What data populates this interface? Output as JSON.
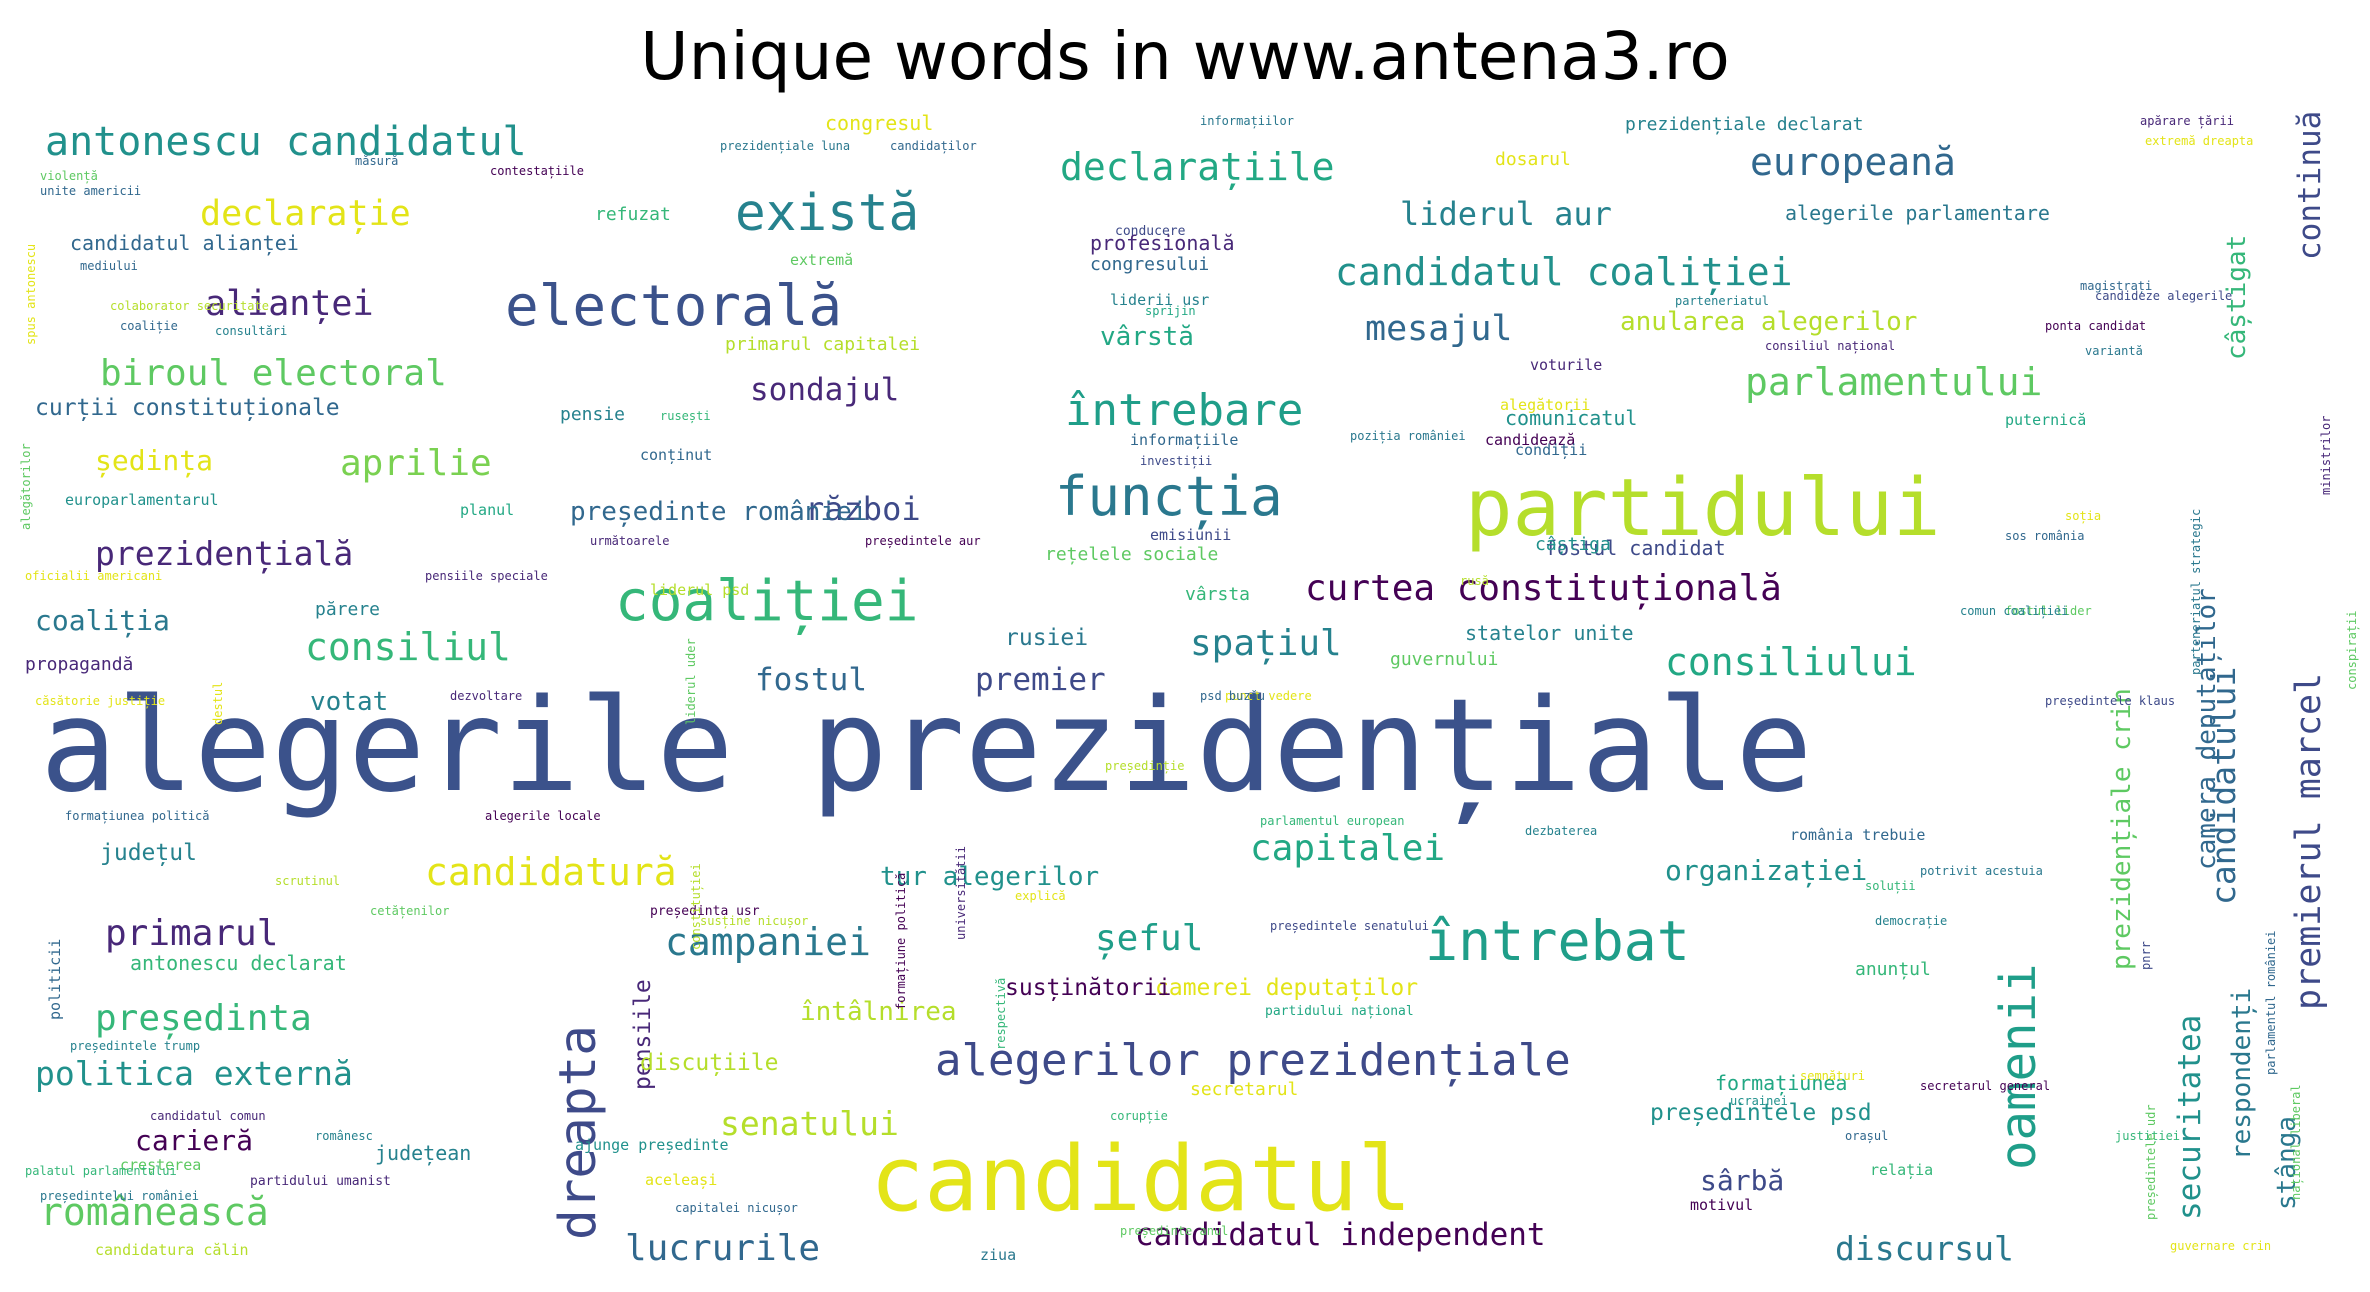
{
  "chart_data": {
    "type": "wordcloud",
    "title": "Unique words in www.antena3.ro",
    "words": [
      {
        "text": "alegerile prezidențiale",
        "weight": 100,
        "color": "#3b528b"
      },
      {
        "text": "candidatul",
        "weight": 70,
        "color": "#e3e418"
      },
      {
        "text": "partidului",
        "weight": 62,
        "color": "#b5de2b"
      },
      {
        "text": "electorală",
        "weight": 44,
        "color": "#3b528b"
      },
      {
        "text": "coaliției",
        "weight": 44,
        "color": "#35b779"
      },
      {
        "text": "întrebat",
        "weight": 43,
        "color": "#1f9e89"
      },
      {
        "text": "funcția",
        "weight": 42,
        "color": "#2a788e"
      },
      {
        "text": "există",
        "weight": 40,
        "color": "#26828e"
      },
      {
        "text": "dreapta",
        "weight": 40,
        "color": "#3e4a89"
      },
      {
        "text": "oamenii",
        "weight": 38,
        "color": "#1f9e89"
      },
      {
        "text": "alegerilor prezidențiale",
        "weight": 34,
        "color": "#3e4a89"
      },
      {
        "text": "întrebare",
        "weight": 34,
        "color": "#1f9e89"
      },
      {
        "text": "antonescu candidatul",
        "weight": 31,
        "color": "#21918c"
      },
      {
        "text": "candidatul coaliției",
        "weight": 30,
        "color": "#21918c"
      },
      {
        "text": "europeană",
        "weight": 30,
        "color": "#31688e"
      },
      {
        "text": "declarațiile",
        "weight": 30,
        "color": "#22a884"
      },
      {
        "text": "românească",
        "weight": 30,
        "color": "#5ec962"
      },
      {
        "text": "candidatură",
        "weight": 30,
        "color": "#e3e418"
      },
      {
        "text": "campaniei",
        "weight": 30,
        "color": "#2a788e"
      },
      {
        "text": "parlamentului",
        "weight": 30,
        "color": "#5ec962"
      },
      {
        "text": "consiliul",
        "weight": 30,
        "color": "#35b779"
      },
      {
        "text": "consiliului",
        "weight": 30,
        "color": "#22a884"
      },
      {
        "text": "curtea constituțională",
        "weight": 28,
        "color": "#440154"
      },
      {
        "text": "președinta",
        "weight": 28,
        "color": "#35b779"
      },
      {
        "text": "biroul electoral",
        "weight": 28,
        "color": "#5ec962"
      },
      {
        "text": "primarul",
        "weight": 28,
        "color": "#482878"
      },
      {
        "text": "lucrurile",
        "weight": 28,
        "color": "#31688e"
      },
      {
        "text": "capitalei",
        "weight": 28,
        "color": "#22a884"
      },
      {
        "text": "aprilie",
        "weight": 28,
        "color": "#7ad151"
      },
      {
        "text": "spațiul",
        "weight": 28,
        "color": "#26828e"
      },
      {
        "text": "șeful",
        "weight": 28,
        "color": "#1f9e89"
      },
      {
        "text": "alianței",
        "weight": 27,
        "color": "#482878"
      },
      {
        "text": "mesajul",
        "weight": 27,
        "color": "#31688e"
      },
      {
        "text": "declarație",
        "weight": 27,
        "color": "#e3e418"
      },
      {
        "text": "premierul marcel",
        "weight": 27,
        "color": "#3e4a89"
      },
      {
        "text": "candidatului",
        "weight": 26,
        "color": "#31688e"
      },
      {
        "text": "senatului",
        "weight": 26,
        "color": "#b5de2b"
      },
      {
        "text": "discursul",
        "weight": 26,
        "color": "#2a788e"
      },
      {
        "text": "prezidențială",
        "weight": 26,
        "color": "#482878"
      },
      {
        "text": "politica externă",
        "weight": 26,
        "color": "#21918c"
      },
      {
        "text": "liderul aur",
        "weight": 25,
        "color": "#26828e"
      },
      {
        "text": "război",
        "weight": 25,
        "color": "#3e4a89"
      },
      {
        "text": "sondajul",
        "weight": 24,
        "color": "#482878"
      },
      {
        "text": "premier",
        "weight": 24,
        "color": "#3e4a89"
      },
      {
        "text": "fostul",
        "weight": 24,
        "color": "#31688e"
      },
      {
        "text": "candidatul independent",
        "weight": 24,
        "color": "#440154"
      },
      {
        "text": "securitatea",
        "weight": 24,
        "color": "#21918c"
      },
      {
        "text": "continuă",
        "weight": 24,
        "color": "#3e4a89"
      },
      {
        "text": "coaliția",
        "weight": 22,
        "color": "#2a788e"
      },
      {
        "text": "ședința",
        "weight": 22,
        "color": "#e3e418"
      },
      {
        "text": "organizației",
        "weight": 22,
        "color": "#21918c"
      },
      {
        "text": "sârbă",
        "weight": 22,
        "color": "#3e4a89"
      },
      {
        "text": "carieră",
        "weight": 22,
        "color": "#440154"
      },
      {
        "text": "vârstă",
        "weight": 20,
        "color": "#22a884"
      },
      {
        "text": "votat",
        "weight": 20,
        "color": "#26828e"
      },
      {
        "text": "anularea alegerilor",
        "weight": 20,
        "color": "#b5de2b"
      },
      {
        "text": "președinte româniei",
        "weight": 20,
        "color": "#31688e"
      },
      {
        "text": "tur alegerilor",
        "weight": 20,
        "color": "#21918c"
      },
      {
        "text": "întâlnirea",
        "weight": 20,
        "color": "#b5de2b"
      },
      {
        "text": "câștigat",
        "weight": 20,
        "color": "#35b779"
      },
      {
        "text": "camera deputaților",
        "weight": 20,
        "color": "#31688e"
      },
      {
        "text": "prezidențiale crin",
        "weight": 20,
        "color": "#5ec962"
      },
      {
        "text": "respondenți",
        "weight": 20,
        "color": "#2a788e"
      },
      {
        "text": "stânga",
        "weight": 20,
        "color": "#2a788e"
      },
      {
        "text": "pensiile",
        "weight": 18,
        "color": "#482878"
      },
      {
        "text": "județul",
        "weight": 18,
        "color": "#26828e"
      },
      {
        "text": "curții constituționale",
        "weight": 18,
        "color": "#31688e"
      },
      {
        "text": "camerei deputaților",
        "weight": 18,
        "color": "#e3e418"
      },
      {
        "text": "susținătorii",
        "weight": 18,
        "color": "#440154"
      },
      {
        "text": "președintele psd",
        "weight": 18,
        "color": "#21918c"
      },
      {
        "text": "discuțiile",
        "weight": 18,
        "color": "#b5de2b"
      },
      {
        "text": "rusiei",
        "weight": 18,
        "color": "#2a788e"
      },
      {
        "text": "profesională",
        "weight": 16,
        "color": "#482878"
      },
      {
        "text": "antonescu declarat",
        "weight": 16,
        "color": "#35b779"
      },
      {
        "text": "județean",
        "weight": 16,
        "color": "#26828e"
      },
      {
        "text": "alegerile parlamentare",
        "weight": 16,
        "color": "#2a788e"
      },
      {
        "text": "statelor unite",
        "weight": 16,
        "color": "#26828e"
      },
      {
        "text": "formațiunea",
        "weight": 16,
        "color": "#22a884"
      },
      {
        "text": "fostul candidat",
        "weight": 16,
        "color": "#3e4a89"
      },
      {
        "text": "comunicatul",
        "weight": 16,
        "color": "#21918c"
      },
      {
        "text": "candidatul alianței",
        "weight": 16,
        "color": "#31688e"
      },
      {
        "text": "congresul",
        "weight": 16,
        "color": "#e3e418"
      },
      {
        "text": "prezidențiale declarat",
        "weight": 14,
        "color": "#26828e"
      },
      {
        "text": "congresului",
        "weight": 14,
        "color": "#31688e"
      },
      {
        "text": "anunțul",
        "weight": 14,
        "color": "#35b779"
      },
      {
        "text": "primarul capitalei",
        "weight": 14,
        "color": "#b5de2b"
      },
      {
        "text": "rețelele sociale",
        "weight": 14,
        "color": "#5ec962"
      },
      {
        "text": "secretarul",
        "weight": 14,
        "color": "#e3e418"
      },
      {
        "text": "dosarul",
        "weight": 14,
        "color": "#e3e418"
      },
      {
        "text": "refuzat",
        "weight": 14,
        "color": "#35b779"
      },
      {
        "text": "propagandă",
        "weight": 14,
        "color": "#482878"
      },
      {
        "text": "părere",
        "weight": 14,
        "color": "#26828e"
      },
      {
        "text": "guvernului",
        "weight": 14,
        "color": "#5ec962"
      },
      {
        "text": "câștiga",
        "weight": 14,
        "color": "#21918c"
      },
      {
        "text": "pensie",
        "weight": 14,
        "color": "#26828e"
      },
      {
        "text": "conținut",
        "weight": 12,
        "color": "#31688e"
      },
      {
        "text": "europarlamentarul",
        "weight": 12,
        "color": "#21918c"
      },
      {
        "text": "emisiunii",
        "weight": 12,
        "color": "#3e4a89"
      },
      {
        "text": "vârsta",
        "weight": 14,
        "color": "#35b779"
      },
      {
        "text": "voturile",
        "weight": 12,
        "color": "#482878"
      },
      {
        "text": "liderul psd",
        "weight": 12,
        "color": "#b5de2b"
      },
      {
        "text": "extremă",
        "weight": 12,
        "color": "#5ec962"
      },
      {
        "text": "candidează",
        "weight": 12,
        "color": "#440154"
      },
      {
        "text": "alegătorii",
        "weight": 12,
        "color": "#e3e418"
      },
      {
        "text": "puternică",
        "weight": 12,
        "color": "#22a884"
      },
      {
        "text": "condiții",
        "weight": 12,
        "color": "#31688e"
      },
      {
        "text": "informațiile",
        "weight": 12,
        "color": "#31688e"
      },
      {
        "text": "liderii usr",
        "weight": 12,
        "color": "#26828e"
      },
      {
        "text": "planul",
        "weight": 12,
        "color": "#22a884"
      },
      {
        "text": "românia trebuie",
        "weight": 12,
        "color": "#31688e"
      },
      {
        "text": "motivul",
        "weight": 12,
        "color": "#440154"
      },
      {
        "text": "relația",
        "weight": 12,
        "color": "#35b779"
      },
      {
        "text": "creșterea",
        "weight": 12,
        "color": "#5ec962"
      },
      {
        "text": "ajunge președinte",
        "weight": 12,
        "color": "#21918c"
      },
      {
        "text": "aceleași",
        "weight": 12,
        "color": "#e3e418"
      },
      {
        "text": "candidatura călin",
        "weight": 12,
        "color": "#b5de2b"
      },
      {
        "text": "ziua",
        "weight": 12,
        "color": "#2a788e"
      },
      {
        "text": "politicii",
        "weight": 12,
        "color": "#31688e"
      },
      {
        "text": "partidului umanist",
        "weight": 10,
        "color": "#482878"
      },
      {
        "text": "partidului național",
        "weight": 10,
        "color": "#22a884"
      },
      {
        "text": "președinta usr",
        "weight": 10,
        "color": "#440154"
      },
      {
        "text": "ucrainei",
        "weight": 8,
        "color": "#21918c"
      },
      {
        "text": "orașul",
        "weight": 8,
        "color": "#31688e"
      },
      {
        "text": "magistrați",
        "weight": 7,
        "color": "#31688e"
      },
      {
        "text": "ponta candidat",
        "weight": 7,
        "color": "#440154"
      },
      {
        "text": "apărare țării",
        "weight": 7,
        "color": "#482878"
      },
      {
        "text": "variantă",
        "weight": 7,
        "color": "#2a788e"
      },
      {
        "text": "cetățenilor",
        "weight": 7,
        "color": "#5ec962"
      },
      {
        "text": "scrutinul",
        "weight": 7,
        "color": "#b5de2b"
      },
      {
        "text": "dezvoltare",
        "weight": 7,
        "color": "#482878"
      },
      {
        "text": "explică",
        "weight": 7,
        "color": "#e3e418"
      },
      {
        "text": "democrație",
        "weight": 7,
        "color": "#26828e"
      },
      {
        "text": "soluții",
        "weight": 7,
        "color": "#35b779"
      },
      {
        "text": "mediului",
        "weight": 7,
        "color": "#31688e"
      },
      {
        "text": "sprijin",
        "weight": 7,
        "color": "#22a884"
      },
      {
        "text": "soția",
        "weight": 8,
        "color": "#e3e418"
      },
      {
        "text": "conducere",
        "weight": 10,
        "color": "#3e4a89"
      },
      {
        "text": "dezbaterea",
        "weight": 7,
        "color": "#26828e"
      },
      {
        "text": "președinție",
        "weight": 8,
        "color": "#b5de2b"
      },
      {
        "text": "pnrr",
        "weight": 8,
        "color": "#3e4a89"
      },
      {
        "text": "justiției",
        "weight": 8,
        "color": "#35b779"
      },
      {
        "text": "violență",
        "weight": 6,
        "color": "#5ec962"
      },
      {
        "text": "unite americii",
        "weight": 7,
        "color": "#31688e"
      },
      {
        "text": "măsură",
        "weight": 6,
        "color": "#31688e"
      },
      {
        "text": "contestațiile",
        "weight": 6,
        "color": "#440154"
      },
      {
        "text": "prezidențiale luna",
        "weight": 6,
        "color": "#2a788e"
      },
      {
        "text": "candidaților",
        "weight": 6,
        "color": "#31688e"
      },
      {
        "text": "parteneriatul",
        "weight": 6,
        "color": "#26828e"
      },
      {
        "text": "consiliul național",
        "weight": 6,
        "color": "#482878"
      },
      {
        "text": "candideze alegerile",
        "weight": 6,
        "color": "#3e4a89"
      },
      {
        "text": "colaborator securitate",
        "weight": 6,
        "color": "#b5de2b"
      },
      {
        "text": "coaliție",
        "weight": 6,
        "color": "#31688e"
      },
      {
        "text": "consultări",
        "weight": 6,
        "color": "#26828e"
      },
      {
        "text": "rusești",
        "weight": 6,
        "color": "#35b779"
      },
      {
        "text": "poziția româniei",
        "weight": 6,
        "color": "#2a788e"
      },
      {
        "text": "investiții",
        "weight": 6,
        "color": "#3e4a89"
      },
      {
        "text": "următoarele",
        "weight": 6,
        "color": "#482878"
      },
      {
        "text": "președintele aur",
        "weight": 6,
        "color": "#440154"
      },
      {
        "text": "oficialii americani",
        "weight": 6,
        "color": "#e3e418"
      },
      {
        "text": "pensiile speciale",
        "weight": 7,
        "color": "#482878"
      },
      {
        "text": "extremă dreapta",
        "weight": 7,
        "color": "#e3e418"
      },
      {
        "text": "sos românia",
        "weight": 6,
        "color": "#31688e"
      },
      {
        "text": "fostul lider",
        "weight": 6,
        "color": "#5ec962"
      },
      {
        "text": "comun coaliției",
        "weight": 6,
        "color": "#26828e"
      },
      {
        "text": "rusă",
        "weight": 6,
        "color": "#b5de2b"
      },
      {
        "text": "căsătorie justiție",
        "weight": 6,
        "color": "#e3e418"
      },
      {
        "text": "punct vedere",
        "weight": 6,
        "color": "#e3e418"
      },
      {
        "text": "psd buzău",
        "weight": 7,
        "color": "#31688e"
      },
      {
        "text": "președintele klaus",
        "weight": 7,
        "color": "#3e4a89"
      },
      {
        "text": "alegerile locale",
        "weight": 6,
        "color": "#440154"
      },
      {
        "text": "formațiunea politică",
        "weight": 6,
        "color": "#31688e"
      },
      {
        "text": "parlamentul european",
        "weight": 6,
        "color": "#35b779"
      },
      {
        "text": "potrivit acestuia",
        "weight": 6,
        "color": "#2a788e"
      },
      {
        "text": "susține nicușor",
        "weight": 6,
        "color": "#b5de2b"
      },
      {
        "text": "președintele senatului",
        "weight": 6,
        "color": "#3e4a89"
      },
      {
        "text": "președintele trump",
        "weight": 6,
        "color": "#26828e"
      },
      {
        "text": "românesc",
        "weight": 6,
        "color": "#26828e"
      },
      {
        "text": "candidatul comun",
        "weight": 6,
        "color": "#482878"
      },
      {
        "text": "corupție",
        "weight": 6,
        "color": "#35b779"
      },
      {
        "text": "semnături",
        "weight": 6,
        "color": "#e3e418"
      },
      {
        "text": "secretarul general",
        "weight": 6,
        "color": "#440154"
      },
      {
        "text": "palatul parlamentului",
        "weight": 6,
        "color": "#35b779"
      },
      {
        "text": "capitalei nicușor",
        "weight": 6,
        "color": "#31688e"
      },
      {
        "text": "președinte anul",
        "weight": 6,
        "color": "#5ec962"
      },
      {
        "text": "guvernare crin",
        "weight": 6,
        "color": "#e3e418"
      },
      {
        "text": "informațiilor",
        "weight": 6,
        "color": "#2a788e"
      },
      {
        "text": "spus antonescu",
        "weight": 6,
        "color": "#e3e418"
      },
      {
        "text": "alegătorilor",
        "weight": 6,
        "color": "#5ec962"
      },
      {
        "text": "destul",
        "weight": 6,
        "color": "#e3e418"
      },
      {
        "text": "liderul uder",
        "weight": 6,
        "color": "#5ec962"
      },
      {
        "text": "constituției",
        "weight": 6,
        "color": "#b5de2b"
      },
      {
        "text": "universitătii",
        "weight": 6,
        "color": "#482878"
      },
      {
        "text": "formațiune politică",
        "weight": 7,
        "color": "#440154"
      },
      {
        "text": "respectivă",
        "weight": 6,
        "color": "#35b779"
      },
      {
        "text": "președintele udr",
        "weight": 6,
        "color": "#5ec962"
      },
      {
        "text": "național liberal",
        "weight": 6,
        "color": "#5ec962"
      },
      {
        "text": "parlamentul româniei",
        "weight": 8,
        "color": "#31688e"
      },
      {
        "text": "parteneriatul strategic",
        "weight": 6,
        "color": "#2a788e"
      },
      {
        "text": "conspirații",
        "weight": 6,
        "color": "#5ec962"
      },
      {
        "text": "ministrilor",
        "weight": 6,
        "color": "#482878"
      },
      {
        "text": "președintelui româniei",
        "weight": 6,
        "color": "#2a788e"
      }
    ]
  }
}
